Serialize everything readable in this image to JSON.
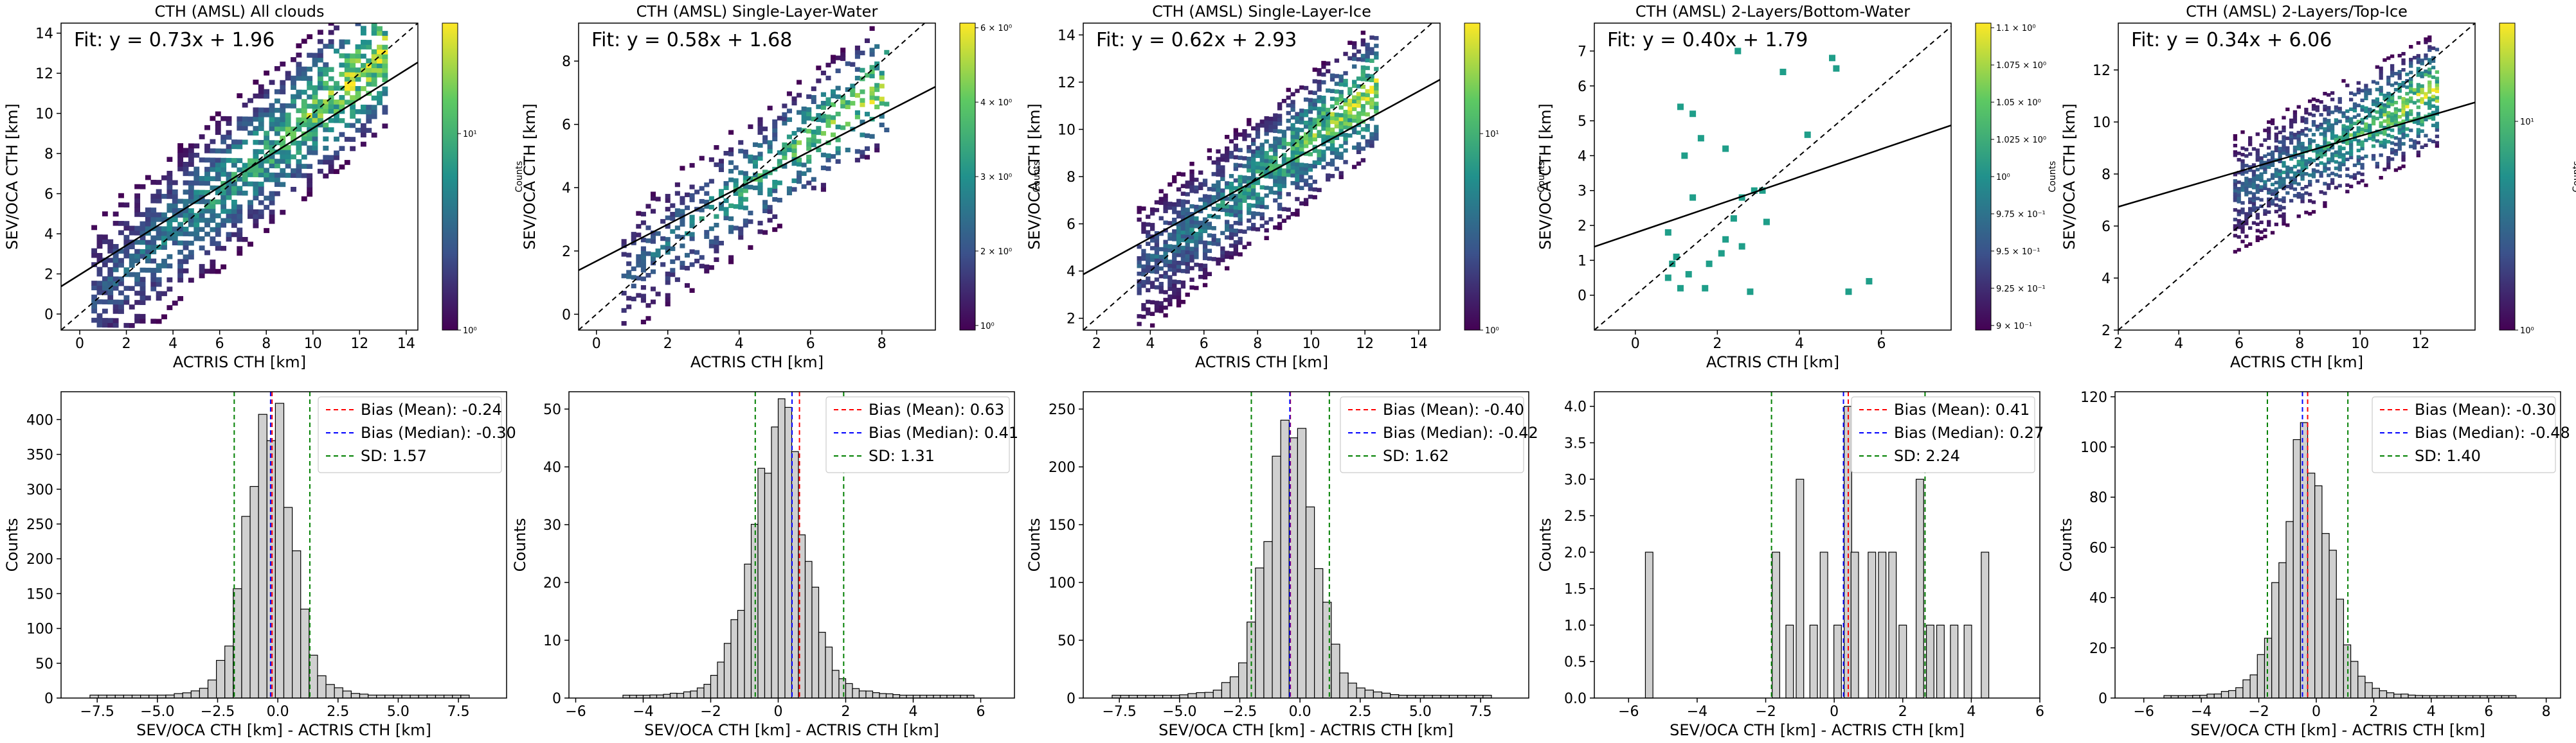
{
  "figure": {
    "colors": {
      "fit_line": "#000000",
      "identity_line": "#000000",
      "bias_mean": "#ff0000",
      "bias_median": "#0000ff",
      "sd": "#008000",
      "hist_bar": "#d0d0d0",
      "hist_edge": "#000000",
      "colormap": [
        "#440154",
        "#3b528b",
        "#21918c",
        "#5ec962",
        "#fde725"
      ]
    }
  },
  "chart_data": [
    {
      "type": "heatmap",
      "title": "CTH (AMSL) All clouds",
      "fit_text": "Fit: y = 0.73x + 1.96",
      "fit": {
        "slope": 0.73,
        "intercept": 1.96
      },
      "xlabel": "ACTRIS CTH [km]",
      "ylabel": "SEV/OCA CTH [km]",
      "xlim": [
        -0.8,
        14.5
      ],
      "ylim": [
        -0.8,
        14.5
      ],
      "xticks": [
        "0",
        "2",
        "4",
        "6",
        "8",
        "10",
        "12",
        "14"
      ],
      "yticks": [
        "0",
        "2",
        "4",
        "6",
        "8",
        "10",
        "12",
        "14"
      ],
      "cloud": {
        "xmin": 0.5,
        "xmax": 13.2,
        "spread": 2.0,
        "density": 0.8,
        "peak": 10
      },
      "colorbar": {
        "label": "Counts",
        "scale": "log",
        "ticks": [
          "10⁰",
          "10¹"
        ]
      }
    },
    {
      "type": "heatmap",
      "title": "CTH (AMSL) Single-Layer-Water",
      "fit_text": "Fit: y = 0.58x + 1.68",
      "fit": {
        "slope": 0.58,
        "intercept": 1.68
      },
      "xlabel": "ACTRIS CTH [km]",
      "ylabel": "SEV/OCA CTH [km]",
      "xlim": [
        -0.5,
        9.5
      ],
      "ylim": [
        -0.5,
        9.2
      ],
      "xticks": [
        "0",
        "2",
        "4",
        "6",
        "8"
      ],
      "yticks": [
        "0",
        "2",
        "4",
        "6",
        "8"
      ],
      "cloud": {
        "xmin": 0.7,
        "xmax": 8.2,
        "spread": 1.0,
        "density": 0.45,
        "peak": 2
      },
      "colorbar": {
        "label": "Counts",
        "scale": "log",
        "ticks": [
          "10⁰",
          "2 × 10⁰",
          "3 × 10⁰",
          "4 × 10⁰",
          "6 × 10⁰"
        ]
      }
    },
    {
      "type": "heatmap",
      "title": "CTH (AMSL) Single-Layer-Ice",
      "fit_text": "Fit: y = 0.62x + 2.93",
      "fit": {
        "slope": 0.62,
        "intercept": 2.93
      },
      "xlabel": "ACTRIS CTH [km]",
      "ylabel": "SEV/OCA CTH [km]",
      "xlim": [
        1.5,
        14.8
      ],
      "ylim": [
        1.5,
        14.5
      ],
      "xticks": [
        "2",
        "4",
        "6",
        "8",
        "10",
        "12",
        "14"
      ],
      "yticks": [
        "2",
        "4",
        "6",
        "8",
        "10",
        "12",
        "14"
      ],
      "cloud": {
        "xmin": 3.5,
        "xmax": 12.5,
        "spread": 1.4,
        "density": 0.82,
        "peak": 10
      },
      "colorbar": {
        "label": "Counts",
        "scale": "log",
        "ticks": [
          "10⁰",
          "10¹"
        ]
      }
    },
    {
      "type": "heatmap",
      "title": "CTH (AMSL) 2-Layers/Bottom-Water",
      "fit_text": "Fit: y = 0.40x + 1.79",
      "fit": {
        "slope": 0.4,
        "intercept": 1.79
      },
      "xlabel": "ACTRIS CTH [km]",
      "ylabel": "SEV/OCA CTH [km]",
      "xlim": [
        -1.0,
        7.7
      ],
      "ylim": [
        -1.0,
        7.8
      ],
      "xticks": [
        "0",
        "2",
        "4",
        "6"
      ],
      "yticks": [
        "0",
        "1",
        "2",
        "3",
        "4",
        "5",
        "6",
        "7"
      ],
      "points": [
        [
          1.1,
          5.4
        ],
        [
          1.4,
          5.2
        ],
        [
          1.6,
          4.5
        ],
        [
          1.2,
          4.0
        ],
        [
          2.5,
          7.0
        ],
        [
          2.2,
          4.2
        ],
        [
          2.6,
          2.8
        ],
        [
          2.9,
          3.0
        ],
        [
          3.1,
          3.0
        ],
        [
          2.4,
          2.2
        ],
        [
          2.2,
          1.6
        ],
        [
          2.6,
          1.4
        ],
        [
          0.8,
          1.8
        ],
        [
          1.0,
          1.1
        ],
        [
          0.9,
          0.9
        ],
        [
          1.3,
          0.6
        ],
        [
          0.8,
          0.5
        ],
        [
          1.1,
          0.2
        ],
        [
          1.8,
          0.9
        ],
        [
          2.1,
          1.2
        ],
        [
          1.4,
          2.8
        ],
        [
          3.6,
          6.4
        ],
        [
          4.8,
          6.8
        ],
        [
          4.9,
          6.5
        ],
        [
          4.2,
          4.6
        ],
        [
          5.2,
          0.1
        ],
        [
          5.7,
          0.4
        ],
        [
          3.2,
          2.1
        ],
        [
          2.8,
          0.1
        ],
        [
          1.7,
          0.2
        ]
      ],
      "colorbar": {
        "label": "Counts",
        "scale": "log",
        "ticks": [
          "9 × 10⁻¹",
          "9.25 × 10⁻¹",
          "9.5 × 10⁻¹",
          "9.75 × 10⁻¹",
          "10⁰",
          "1.025 × 10⁰",
          "1.05 × 10⁰",
          "1.075 × 10⁰",
          "1.1 × 10⁰"
        ]
      }
    },
    {
      "type": "heatmap",
      "title": "CTH (AMSL) 2-Layers/Top-Ice",
      "fit_text": "Fit: y = 0.34x + 6.06",
      "fit": {
        "slope": 0.34,
        "intercept": 6.06
      },
      "xlabel": "ACTRIS CTH [km]",
      "ylabel": "SEV/OCA CTH [km]",
      "xlim": [
        2.0,
        13.8
      ],
      "ylim": [
        2.0,
        13.8
      ],
      "xticks": [
        "2",
        "4",
        "6",
        "8",
        "10",
        "12"
      ],
      "yticks": [
        "2",
        "4",
        "6",
        "8",
        "10",
        "12"
      ],
      "cloud": {
        "xmin": 5.8,
        "xmax": 12.6,
        "spread": 1.1,
        "density": 0.7,
        "peak": 5
      },
      "colorbar": {
        "label": "Counts",
        "scale": "log",
        "ticks": [
          "10⁰",
          "10¹"
        ]
      }
    },
    {
      "type": "bar",
      "xlabel": "SEV/OCA CTH [km] - ACTRIS CTH [km]",
      "ylabel": "Counts",
      "xlim": [
        -9.0,
        9.5
      ],
      "ylim": [
        0,
        440
      ],
      "xticks": [
        "−7.5",
        "−5.0",
        "−2.5",
        "0.0",
        "2.5",
        "5.0",
        "7.5"
      ],
      "yticks": [
        "0",
        "50",
        "100",
        "150",
        "200",
        "250",
        "300",
        "350",
        "400"
      ],
      "hist": {
        "center": -0.35,
        "sd": 0.9,
        "peak": 425,
        "width": 0.35,
        "from": -7.8,
        "to": 7.8
      },
      "bias_mean": -0.24,
      "bias_median": -0.3,
      "sd": 1.57,
      "legend": [
        "Bias (Mean): -0.24",
        "Bias (Median): -0.30",
        "SD: 1.57"
      ]
    },
    {
      "type": "bar",
      "xlabel": "SEV/OCA CTH [km] - ACTRIS CTH [km]",
      "ylabel": "Counts",
      "xlim": [
        -6.2,
        7.0
      ],
      "ylim": [
        0,
        53
      ],
      "xticks": [
        "−6",
        "−4",
        "−2",
        "0",
        "2",
        "4",
        "6"
      ],
      "yticks": [
        "0",
        "10",
        "20",
        "30",
        "40",
        "50"
      ],
      "hist": {
        "center": 0.0,
        "sd": 0.75,
        "peak": 50,
        "width": 0.2,
        "from": -4.6,
        "to": 5.8
      },
      "bias_mean": 0.63,
      "bias_median": 0.41,
      "sd": 1.31,
      "legend": [
        "Bias (Mean): 0.63",
        "Bias (Median): 0.41",
        "SD: 1.31"
      ]
    },
    {
      "type": "bar",
      "xlabel": "SEV/OCA CTH [km] - ACTRIS CTH [km]",
      "ylabel": "Counts",
      "xlim": [
        -9.0,
        9.5
      ],
      "ylim": [
        0,
        265
      ],
      "xticks": [
        "−7.5",
        "−5.0",
        "−2.5",
        "0.0",
        "2.5",
        "5.0",
        "7.5"
      ],
      "yticks": [
        "0",
        "50",
        "100",
        "150",
        "200",
        "250"
      ],
      "hist": {
        "center": -0.4,
        "sd": 0.95,
        "peak": 245,
        "width": 0.35,
        "from": -7.8,
        "to": 7.8
      },
      "bias_mean": -0.4,
      "bias_median": -0.42,
      "sd": 1.62,
      "legend": [
        "Bias (Mean): -0.40",
        "Bias (Median): -0.42",
        "SD: 1.62"
      ]
    },
    {
      "type": "bar",
      "xlabel": "SEV/OCA CTH [km] - ACTRIS CTH [km]",
      "ylabel": "Counts",
      "xlim": [
        -7.0,
        6.0
      ],
      "ylim": [
        0,
        4.2
      ],
      "xticks": [
        "−6",
        "−4",
        "−2",
        "0",
        "2",
        "4",
        "6"
      ],
      "yticks": [
        "0.0",
        "0.5",
        "1.0",
        "1.5",
        "2.0",
        "2.5",
        "3.0",
        "3.5",
        "4.0"
      ],
      "bars": [
        [
          -5.4,
          2
        ],
        [
          -1.7,
          2
        ],
        [
          -1.3,
          1
        ],
        [
          -1.0,
          3
        ],
        [
          -0.6,
          1
        ],
        [
          -0.3,
          2
        ],
        [
          0.1,
          1
        ],
        [
          0.4,
          4
        ],
        [
          0.6,
          2
        ],
        [
          1.1,
          2
        ],
        [
          1.4,
          2
        ],
        [
          1.7,
          2
        ],
        [
          2.0,
          1
        ],
        [
          2.5,
          3
        ],
        [
          2.8,
          1
        ],
        [
          3.1,
          1
        ],
        [
          3.5,
          1
        ],
        [
          3.9,
          1
        ],
        [
          4.4,
          2
        ]
      ],
      "bar_width": 0.22,
      "bias_mean": 0.41,
      "bias_median": 0.27,
      "sd": 2.24,
      "legend": [
        "Bias (Mean): 0.41",
        "Bias (Median): 0.27",
        "SD: 2.24"
      ]
    },
    {
      "type": "bar",
      "xlabel": "SEV/OCA CTH [km] - ACTRIS CTH [km]",
      "ylabel": "Counts",
      "xlim": [
        -7.0,
        8.5
      ],
      "ylim": [
        0,
        122
      ],
      "xticks": [
        "−6",
        "−4",
        "−2",
        "0",
        "2",
        "4",
        "6",
        "8"
      ],
      "yticks": [
        "0",
        "20",
        "40",
        "60",
        "80",
        "100",
        "120"
      ],
      "hist": {
        "center": -0.35,
        "sd": 0.8,
        "peak": 100,
        "width": 0.25,
        "from": -5.3,
        "to": 6.8
      },
      "bias_mean": -0.3,
      "bias_median": -0.48,
      "sd": 1.4,
      "legend": [
        "Bias (Mean): -0.30",
        "Bias (Median): -0.48",
        "SD: 1.40"
      ]
    }
  ]
}
